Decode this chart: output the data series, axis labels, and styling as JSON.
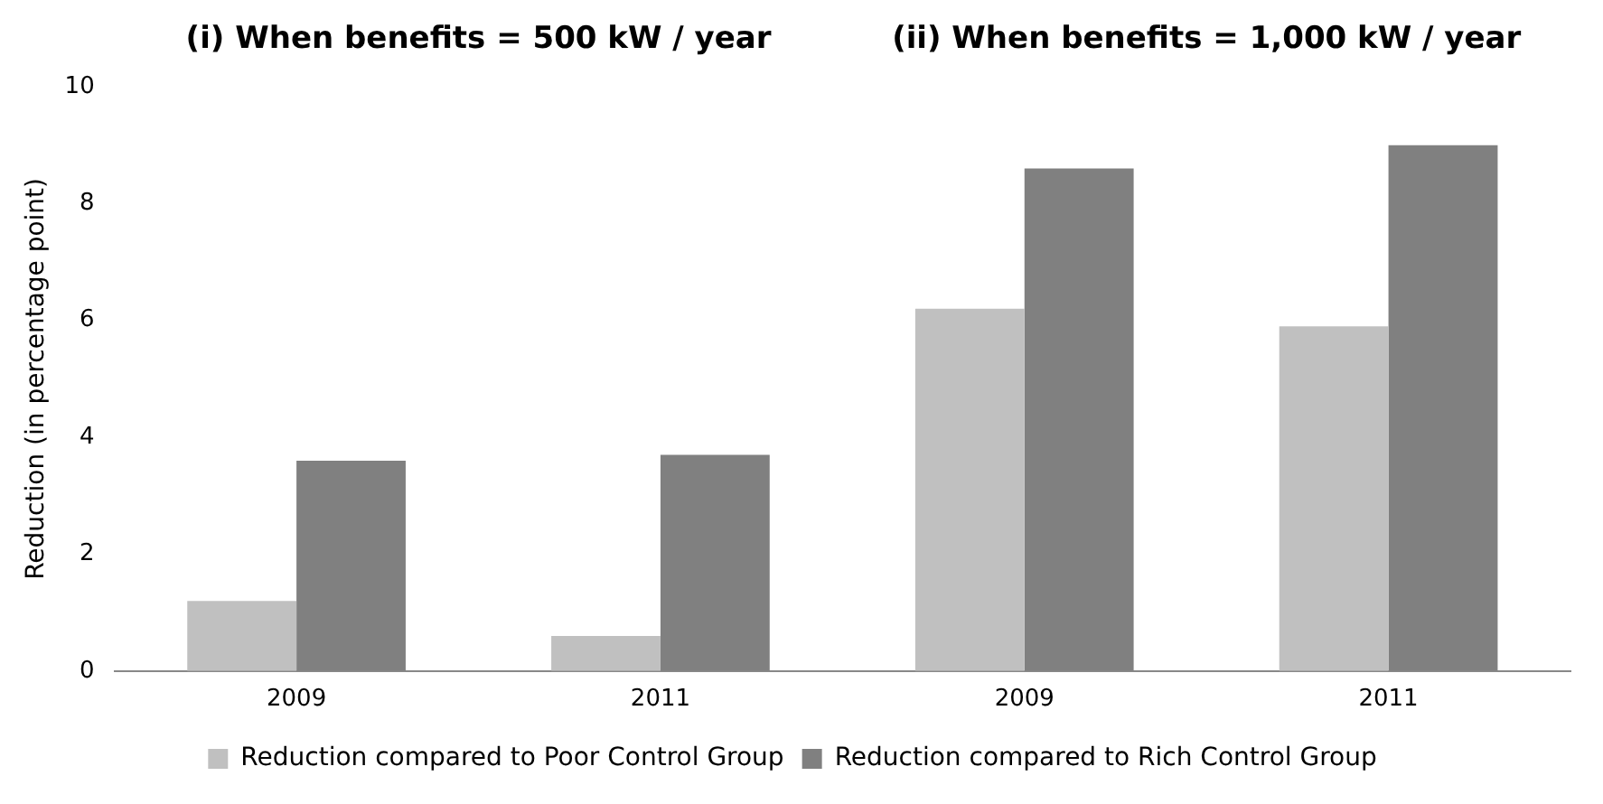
{
  "chart_data": {
    "type": "bar",
    "ylabel": "Reduction (in percentage point)",
    "annotations": [
      "(i) When benefits = 500 kW / year",
      "(ii) When benefits = 1,000 kW / year"
    ],
    "categories": [
      "2009",
      "2011",
      "2009",
      "2011"
    ],
    "series": [
      {
        "name": "Reduction compared to Poor Control Group",
        "color": "#c0c0c0",
        "values": [
          1.2,
          0.6,
          6.2,
          5.9
        ]
      },
      {
        "name": "Reduction compared to Rich Control Group",
        "color": "#808080",
        "values": [
          3.6,
          3.7,
          8.6,
          9.0
        ]
      }
    ],
    "ylim": [
      0,
      10
    ],
    "yticks": [
      0,
      2,
      4,
      6,
      8,
      10
    ],
    "grid": false,
    "legend": "bottom"
  }
}
